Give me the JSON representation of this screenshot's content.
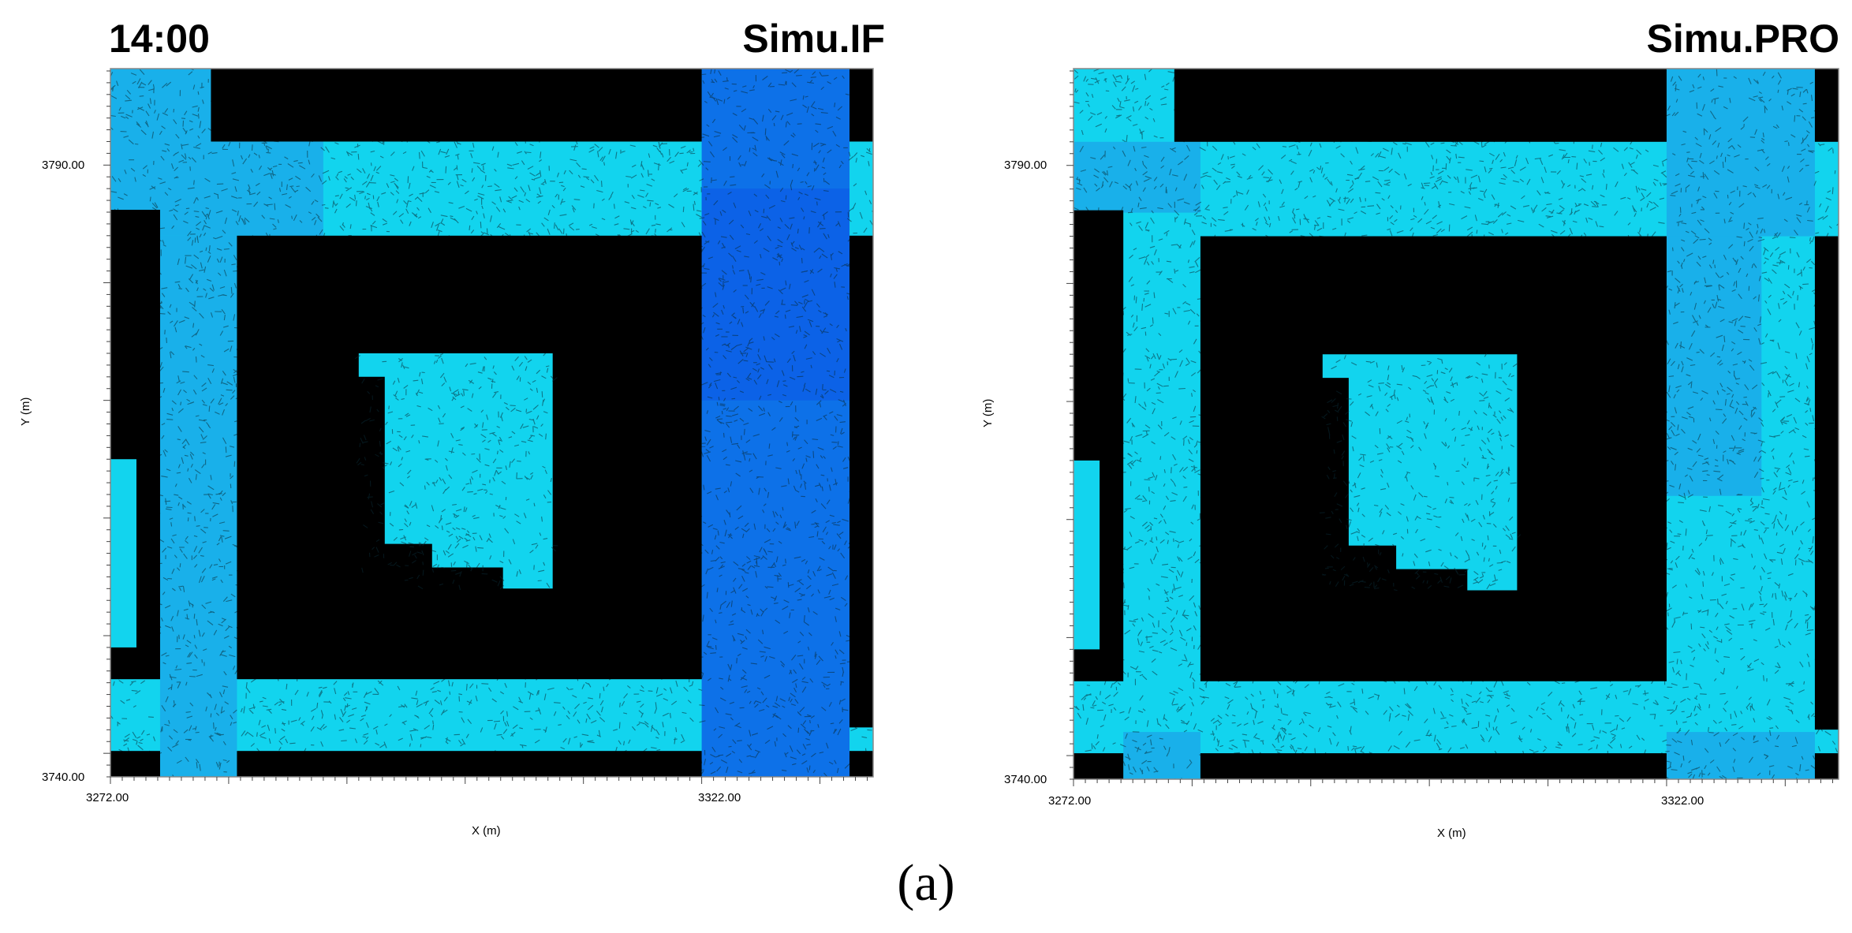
{
  "time_label": "14:00",
  "subfigure_label": "(a)",
  "colors": {
    "building": "#000000",
    "low_speed": "#12d4ee",
    "mid_speed": "#1ba6e9",
    "high_speed": "#0d5fe6"
  },
  "chart_data": [
    {
      "type": "heatmap",
      "title": "Simu.IF",
      "xlabel": "X (m)",
      "ylabel": "Y (m)",
      "x_ticks": [
        "3272.00",
        "3322.00"
      ],
      "y_ticks": [
        "3790.00",
        "3740.00"
      ],
      "x_tick_values": [
        3272,
        3322
      ],
      "y_tick_values": [
        3790,
        3740
      ],
      "xlim": [
        3272,
        3336.5
      ],
      "ylim": [
        3738,
        3798.2
      ],
      "buildings": [
        [
          3280.5,
          3322,
          3798.2,
          3792
        ],
        [
          3334.5,
          3336.5,
          3798.2,
          3792
        ],
        [
          3272,
          3276.2,
          3786.2,
          3746.3
        ],
        [
          3282.7,
          3322,
          3784,
          3746.3
        ],
        [
          3334.5,
          3336.5,
          3784,
          3742.2
        ],
        [
          3272,
          3276.2,
          3740.2,
          3738
        ],
        [
          3282.7,
          3322,
          3740.2,
          3738
        ],
        [
          3334.5,
          3336.5,
          3740.2,
          3738
        ]
      ],
      "zones": [
        [
          3272,
          3282.7,
          3798.2,
          3784,
          "mid_speed"
        ],
        [
          3276.2,
          3282.7,
          3784,
          3738,
          "mid_speed"
        ],
        [
          3282.7,
          3290,
          3792,
          3784,
          "mid_speed"
        ],
        [
          3322,
          3334.5,
          3798.2,
          3738,
          "high_speed"
        ],
        [
          3322,
          3334.5,
          3788,
          3770,
          "high_speed"
        ]
      ],
      "courtyard": [
        [
          3293,
          3774
        ],
        [
          3309.4,
          3774
        ],
        [
          3309.4,
          3754
        ],
        [
          3305.2,
          3754
        ],
        [
          3305.2,
          3755.8
        ],
        [
          3299.2,
          3755.8
        ],
        [
          3299.2,
          3757.8
        ],
        [
          3295.2,
          3757.8
        ],
        [
          3295.2,
          3772
        ],
        [
          3293,
          3772
        ]
      ],
      "small_patch": [
        3272,
        3274.2,
        3765,
        3749
      ]
    },
    {
      "type": "heatmap",
      "title": "Simu.PRO",
      "xlabel": "X (m)",
      "ylabel": "Y (m)",
      "x_ticks": [
        "3272.00",
        "3322.00"
      ],
      "y_ticks": [
        "3790.00",
        "3740.00"
      ],
      "x_tick_values": [
        3272,
        3322
      ],
      "y_tick_values": [
        3790,
        3740
      ],
      "xlim": [
        3272,
        3336.5
      ],
      "ylim": [
        3738,
        3798.2
      ],
      "buildings": [
        [
          3280.5,
          3322,
          3798.2,
          3792
        ],
        [
          3334.5,
          3336.5,
          3798.2,
          3792
        ],
        [
          3272,
          3276.2,
          3786.2,
          3746.3
        ],
        [
          3282.7,
          3322,
          3784,
          3746.3
        ],
        [
          3334.5,
          3336.5,
          3784,
          3742.2
        ],
        [
          3272,
          3276.2,
          3740.2,
          3738
        ],
        [
          3282.7,
          3322,
          3740.2,
          3738
        ],
        [
          3334.5,
          3336.5,
          3740.2,
          3738
        ]
      ],
      "zones": [
        [
          3272,
          3282.7,
          3792,
          3786,
          "mid_speed"
        ],
        [
          3322,
          3334.5,
          3798.2,
          3784,
          "mid_speed"
        ],
        [
          3322,
          3330,
          3784,
          3762,
          "mid_speed"
        ],
        [
          3276.2,
          3282.7,
          3742,
          3738,
          "mid_speed"
        ],
        [
          3322,
          3334.5,
          3742,
          3738,
          "mid_speed"
        ]
      ],
      "courtyard": [
        [
          3293,
          3774
        ],
        [
          3309.4,
          3774
        ],
        [
          3309.4,
          3754
        ],
        [
          3305.2,
          3754
        ],
        [
          3305.2,
          3755.8
        ],
        [
          3299.2,
          3755.8
        ],
        [
          3299.2,
          3757.8
        ],
        [
          3295.2,
          3757.8
        ],
        [
          3295.2,
          3772
        ],
        [
          3293,
          3772
        ]
      ],
      "small_patch": [
        3272,
        3274.2,
        3765,
        3749
      ]
    }
  ]
}
